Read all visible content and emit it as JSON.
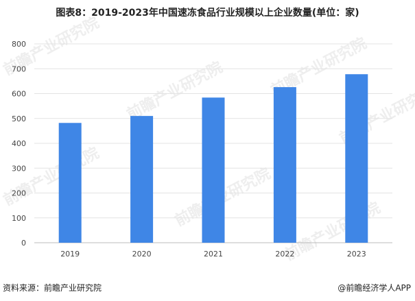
{
  "title": "图表8：2019-2023年中国速冻食品行业规模以上企业数量(单位：家)",
  "source": "资料来源：前瞻产业研究院",
  "credit": "@前瞻经济学人APP",
  "watermark_text": "前瞻产业研究院",
  "colors": {
    "bar": "#3f86e6",
    "grid": "#e3e3e3",
    "axis": "#bbbbbb"
  },
  "chart_data": {
    "type": "bar",
    "title": "图表8：2019-2023年中国速冻食品行业规模以上企业数量(单位：家)",
    "xlabel": "",
    "ylabel": "",
    "categories": [
      "2019",
      "2020",
      "2021",
      "2022",
      "2023"
    ],
    "values": [
      482,
      510,
      584,
      626,
      678
    ],
    "ylim": [
      0,
      800
    ],
    "yticks": [
      0,
      100,
      200,
      300,
      400,
      500,
      600,
      700,
      800
    ],
    "grid": true,
    "legend": "none"
  }
}
